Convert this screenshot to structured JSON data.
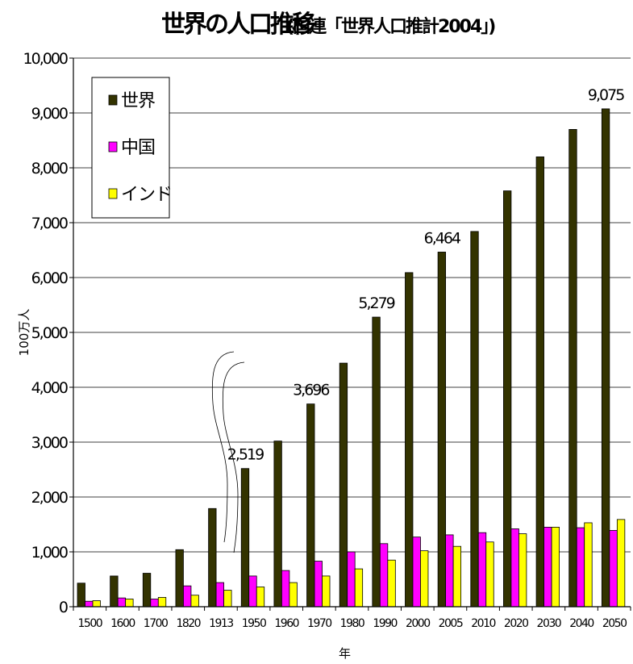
{
  "chart_data": {
    "type": "bar",
    "title": "世界の人口推移",
    "subtitle": "(国連「世界人口推計2004」)",
    "xlabel": "年",
    "ylabel": "100万人",
    "ylim": [
      0,
      10000
    ],
    "yticks": [
      "0",
      "1,000",
      "2,000",
      "3,000",
      "4,000",
      "5,000",
      "6,000",
      "7,000",
      "8,000",
      "9,000",
      "10,000"
    ],
    "grid": true,
    "legend_position": "top-left",
    "categories": [
      "1500",
      "1600",
      "1700",
      "1820",
      "1913",
      "1950",
      "1960",
      "1970",
      "1980",
      "1990",
      "2000",
      "2005",
      "2010",
      "2020",
      "2030",
      "2040",
      "2050"
    ],
    "series": [
      {
        "name": "世界",
        "color": "#333300",
        "values": [
          430,
          560,
          610,
          1040,
          1790,
          2519,
          3020,
          3696,
          4440,
          5279,
          6090,
          6464,
          6840,
          7580,
          8200,
          8700,
          9075
        ]
      },
      {
        "name": "中国",
        "color": "#ff00ff",
        "values": [
          100,
          160,
          140,
          380,
          440,
          560,
          660,
          830,
          1000,
          1150,
          1270,
          1310,
          1350,
          1420,
          1450,
          1440,
          1390
        ]
      },
      {
        "name": "インド",
        "color": "#ffff00",
        "values": [
          110,
          140,
          170,
          210,
          300,
          360,
          440,
          560,
          690,
          850,
          1020,
          1100,
          1180,
          1330,
          1450,
          1530,
          1590
        ]
      }
    ],
    "data_labels": [
      {
        "category": "1950",
        "text": "2,519"
      },
      {
        "category": "1970",
        "text": "3,696"
      },
      {
        "category": "1990",
        "text": "5,279"
      },
      {
        "category": "2005",
        "text": "6,464"
      },
      {
        "category": "2050",
        "text": "9,075"
      }
    ]
  }
}
